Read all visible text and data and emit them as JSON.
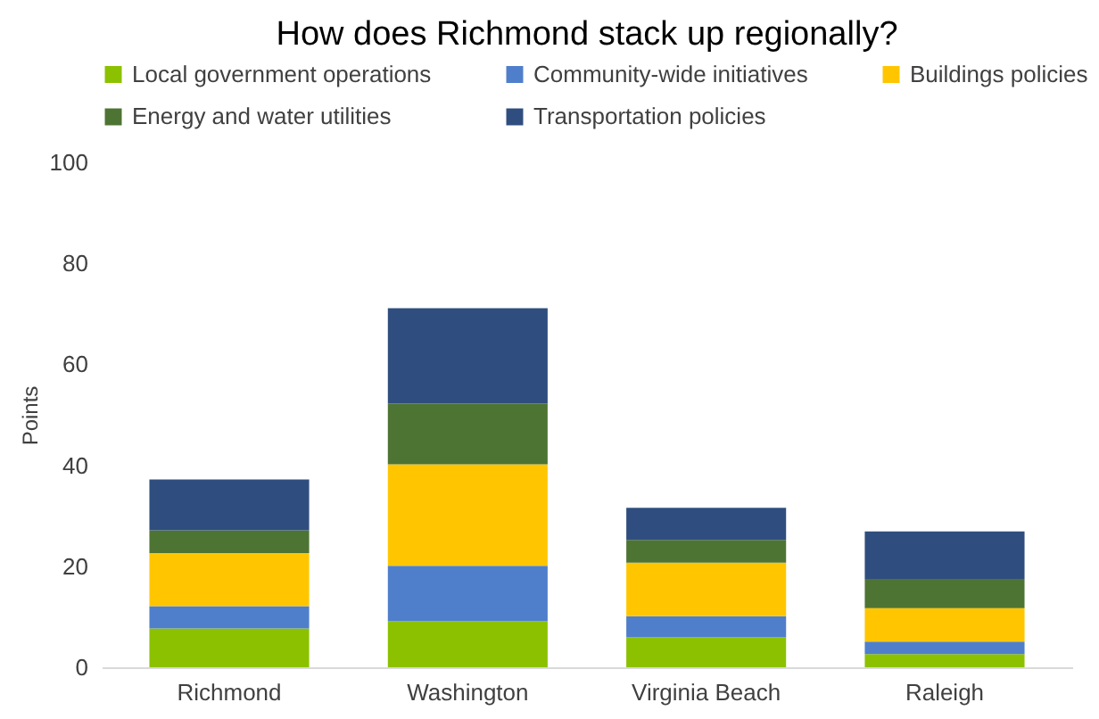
{
  "chart_data": {
    "type": "bar",
    "title": "How does Richmond stack up regionally?",
    "ylabel": "Points",
    "categories": [
      "Richmond",
      "Washington",
      "Virginia Beach",
      "Raleigh"
    ],
    "stacked": true,
    "ylim": [
      0,
      100
    ],
    "yticks": [
      0,
      20,
      40,
      60,
      80,
      100
    ],
    "grid": false,
    "legend": "top",
    "series": [
      {
        "name": "Local government operations",
        "color": "#8cc100",
        "values": [
          7.7,
          9.1,
          5.9,
          2.6
        ]
      },
      {
        "name": "Community-wide initiatives",
        "color": "#4f7fcb",
        "values": [
          4.4,
          11,
          4.2,
          2.5
        ]
      },
      {
        "name": "Buildings policies",
        "color": "#ffc600",
        "values": [
          10.5,
          20.1,
          10.6,
          6.6
        ]
      },
      {
        "name": "Energy and water utilities",
        "color": "#4e7434",
        "values": [
          4.5,
          12,
          4.5,
          5.8
        ]
      },
      {
        "name": "Transportation policies",
        "color": "#2f4e7f",
        "values": [
          10.1,
          18.9,
          6.4,
          9.4
        ]
      }
    ]
  }
}
